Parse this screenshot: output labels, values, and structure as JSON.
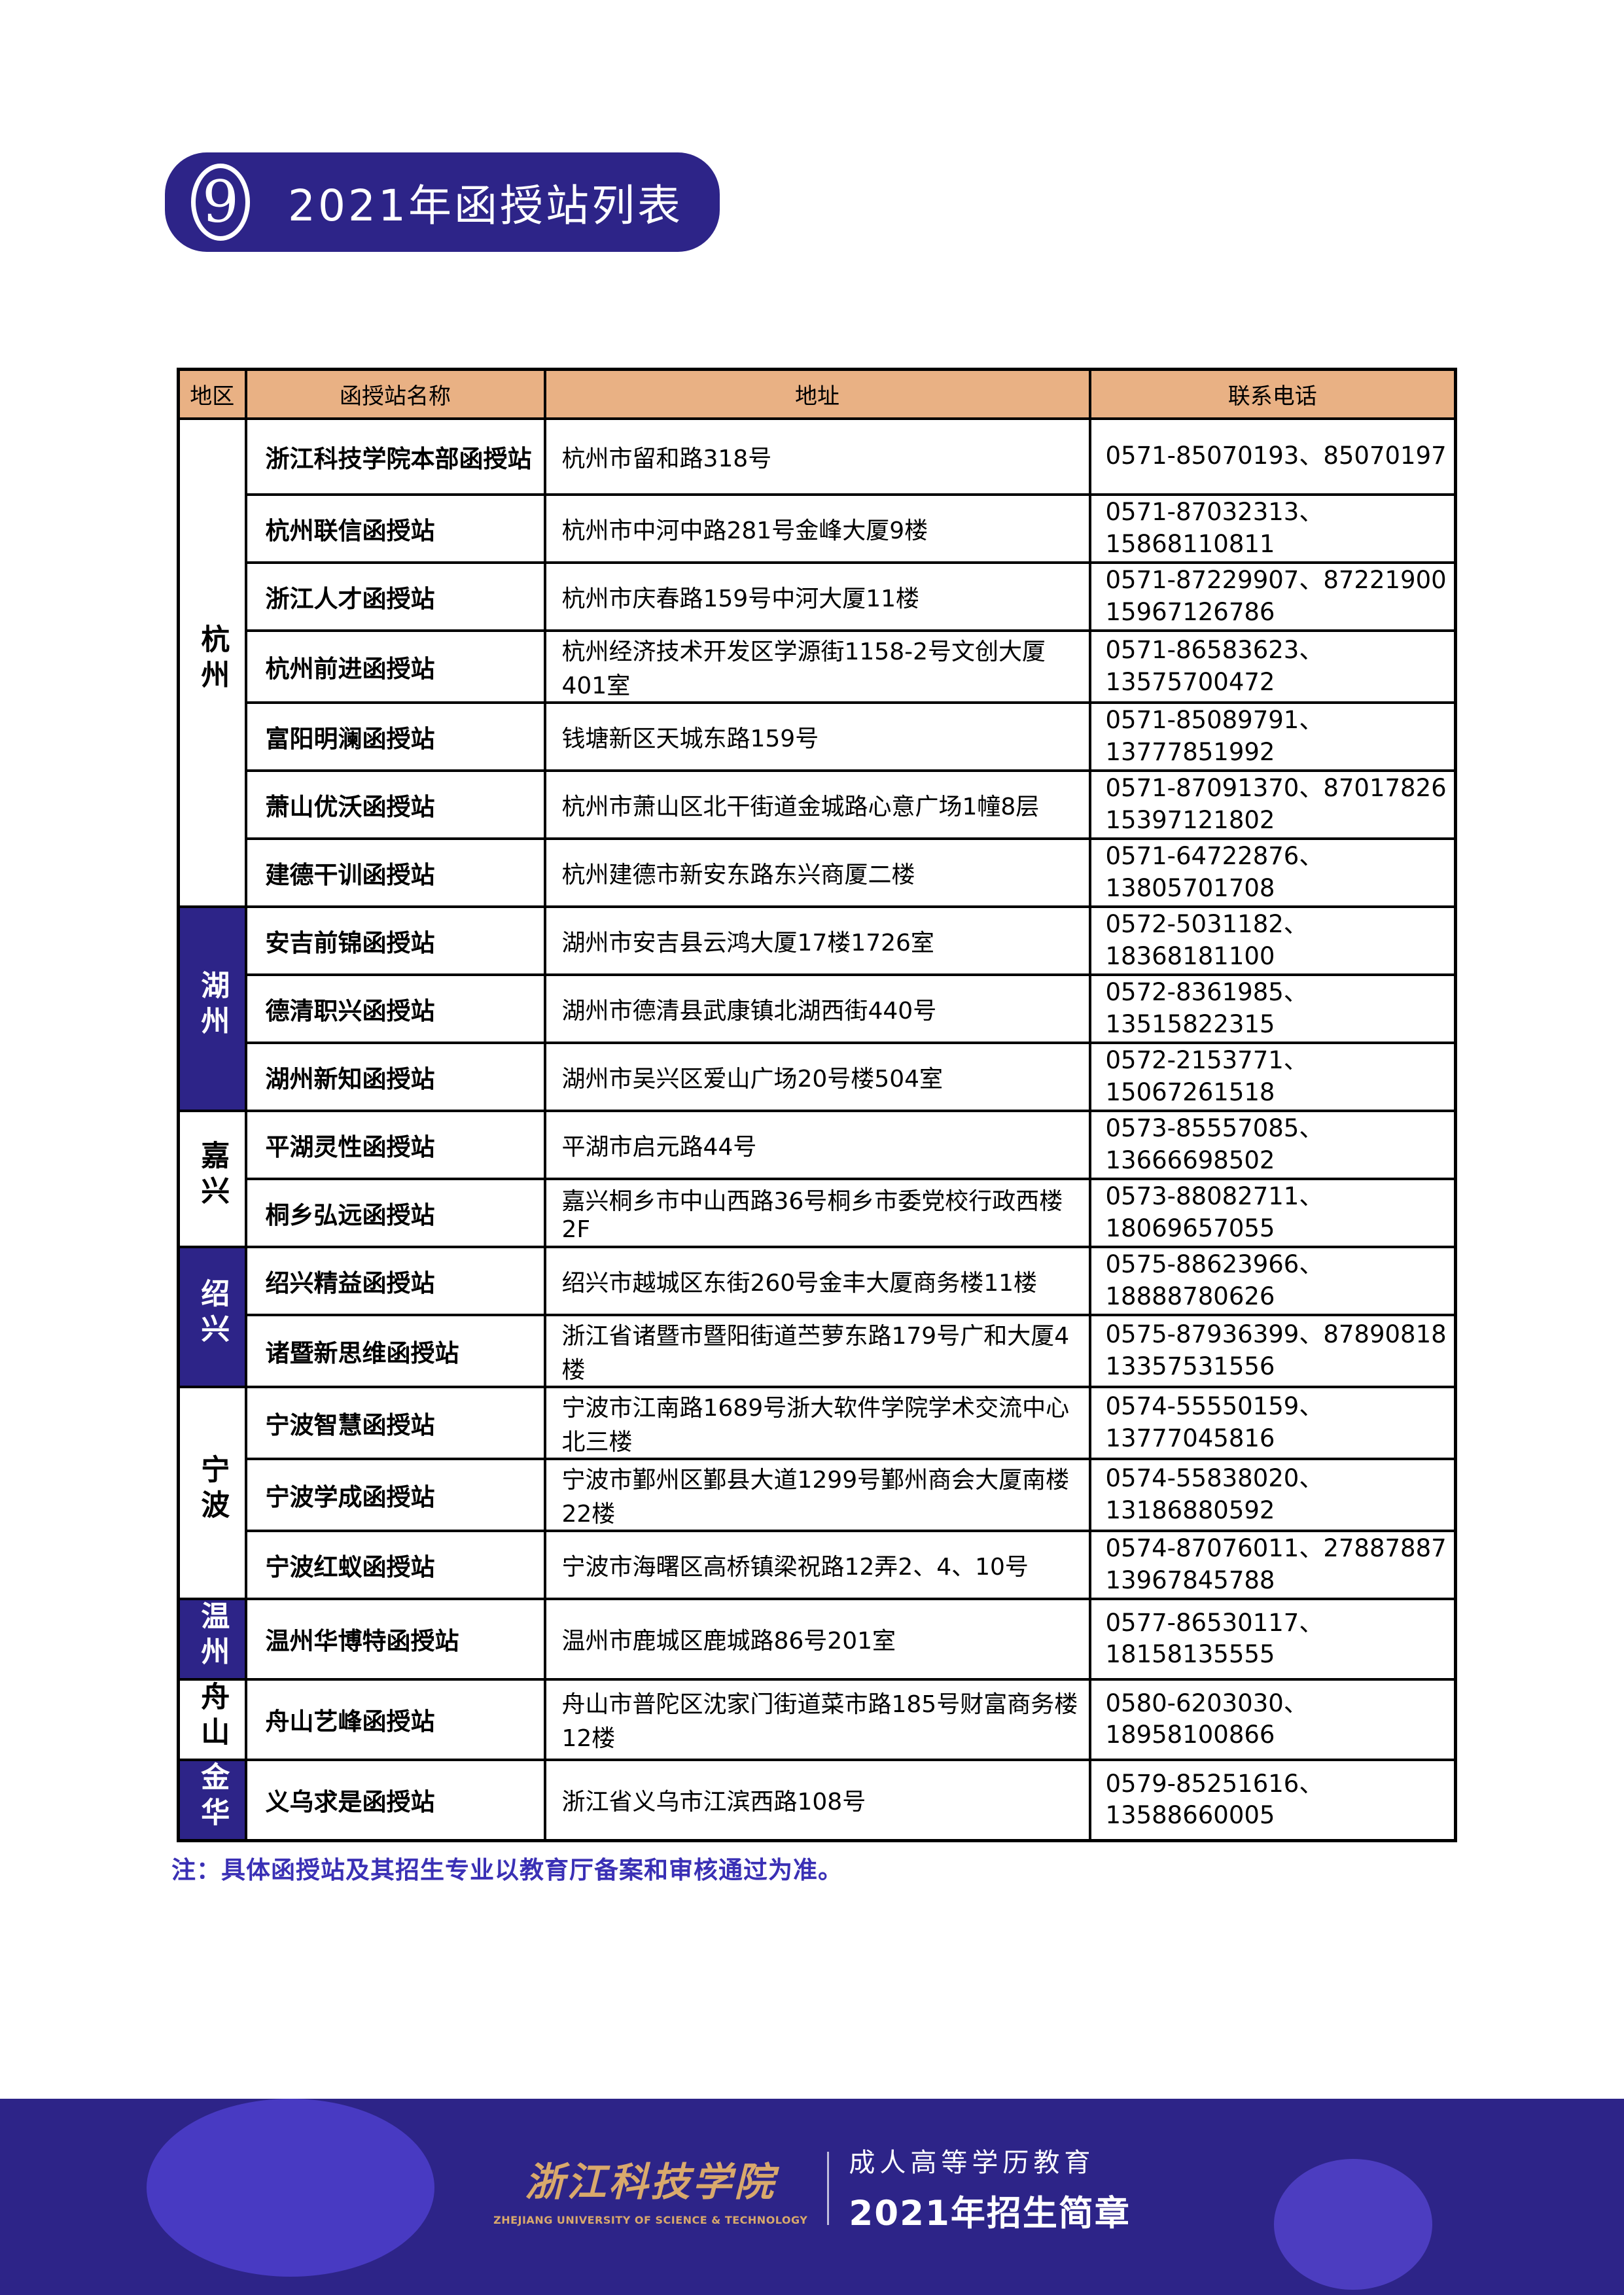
{
  "page": {
    "title_badge": {
      "number": "9",
      "title": "2021年函授站列表"
    }
  },
  "table": {
    "columns": [
      "地区",
      "函授站名称",
      "地址",
      "联系电话"
    ],
    "groups": [
      {
        "region": "杭州",
        "stations": [
          {
            "name": "浙江科技学院本部函授站",
            "address": "杭州市留和路318号",
            "phone": "0571-85070193、85070197"
          },
          {
            "name": "杭州联信函授站",
            "address": "杭州市中河中路281号金峰大厦9楼",
            "phone": "0571-87032313、15868110811"
          },
          {
            "name": "浙江人才函授站",
            "address": "杭州市庆春路159号中河大厦11楼",
            "phone": "0571-87229907、87221900\n15967126786"
          },
          {
            "name": "杭州前进函授站",
            "address": "杭州经济技术开发区学源街1158-2号文创大厦401室",
            "phone": "0571-86583623、13575700472"
          },
          {
            "name": "富阳明澜函授站",
            "address": "钱塘新区天城东路159号",
            "phone": "0571-85089791、13777851992"
          },
          {
            "name": "萧山优沃函授站",
            "address": "杭州市萧山区北干街道金城路心意广场1幢8层",
            "phone": "0571-87091370、87017826\n15397121802"
          },
          {
            "name": "建德干训函授站",
            "address": "杭州建德市新安东路东兴商厦二楼",
            "phone": "0571-64722876、13805701708"
          }
        ]
      },
      {
        "region": "湖州",
        "stations": [
          {
            "name": "安吉前锦函授站",
            "address": "湖州市安吉县云鸿大厦17楼1726室",
            "phone": "0572-5031182、18368181100"
          },
          {
            "name": "德清职兴函授站",
            "address": "湖州市德清县武康镇北湖西街440号",
            "phone": "0572-8361985、13515822315"
          },
          {
            "name": "湖州新知函授站",
            "address": "湖州市吴兴区爱山广场20号楼504室",
            "phone": "0572-2153771、15067261518"
          }
        ]
      },
      {
        "region": "嘉兴",
        "stations": [
          {
            "name": "平湖灵性函授站",
            "address": "平湖市启元路44号",
            "phone": "0573-85557085、13666698502"
          },
          {
            "name": "桐乡弘远函授站",
            "address": "嘉兴桐乡市中山西路36号桐乡市委党校行政西楼2F",
            "phone": "0573-88082711、18069657055"
          }
        ]
      },
      {
        "region": "绍兴",
        "stations": [
          {
            "name": "绍兴精益函授站",
            "address": "绍兴市越城区东街260号金丰大厦商务楼11楼",
            "phone": "0575-88623966、18888780626"
          },
          {
            "name": "诸暨新思维函授站",
            "address": "浙江省诸暨市暨阳街道苎萝东路179号广和大厦4楼",
            "phone": "0575-87936399、87890818\n13357531556"
          }
        ]
      },
      {
        "region": "宁波",
        "stations": [
          {
            "name": "宁波智慧函授站",
            "address": "宁波市江南路1689号浙大软件学院学术交流中心北三楼",
            "phone": "0574-55550159、13777045816"
          },
          {
            "name": "宁波学成函授站",
            "address": "宁波市鄞州区鄞县大道1299号鄞州商会大厦南楼22楼",
            "phone": "0574-55838020、13186880592"
          },
          {
            "name": "宁波红蚁函授站",
            "address": "宁波市海曙区高桥镇梁祝路12弄2、4、10号",
            "phone": "0574-87076011、27887887\n13967845788"
          }
        ]
      },
      {
        "region": "温州",
        "stations": [
          {
            "name": "温州华博特函授站",
            "address": "温州市鹿城区鹿城路86号201室",
            "phone": "0577-86530117、18158135555"
          }
        ]
      },
      {
        "region": "舟山",
        "stations": [
          {
            "name": "舟山艺峰函授站",
            "address": "舟山市普陀区沈家门街道菜市路185号财富商务楼12楼",
            "phone": "0580-6203030、18958100866"
          }
        ]
      },
      {
        "region": "金华",
        "stations": [
          {
            "name": "义乌求是函授站",
            "address": "浙江省义乌市江滨西路108号",
            "phone": "0579-85251616、13588660005"
          }
        ]
      }
    ]
  },
  "note": "注：具体函授站及其招生专业以教育厅备案和审核通过为准。",
  "footer": {
    "logo_cn": "浙江科技学院",
    "logo_en": "ZHEJIANG UNIVERSITY OF SCIENCE & TECHNOLOGY",
    "program": "成人高等学历教育",
    "brochure": "2021年招生简章"
  },
  "colors": {
    "brand_indigo": "#2d2488",
    "header_peach": "#e9b184",
    "note_purple": "#3a30b5",
    "footer_gold": "#d9a96c"
  }
}
